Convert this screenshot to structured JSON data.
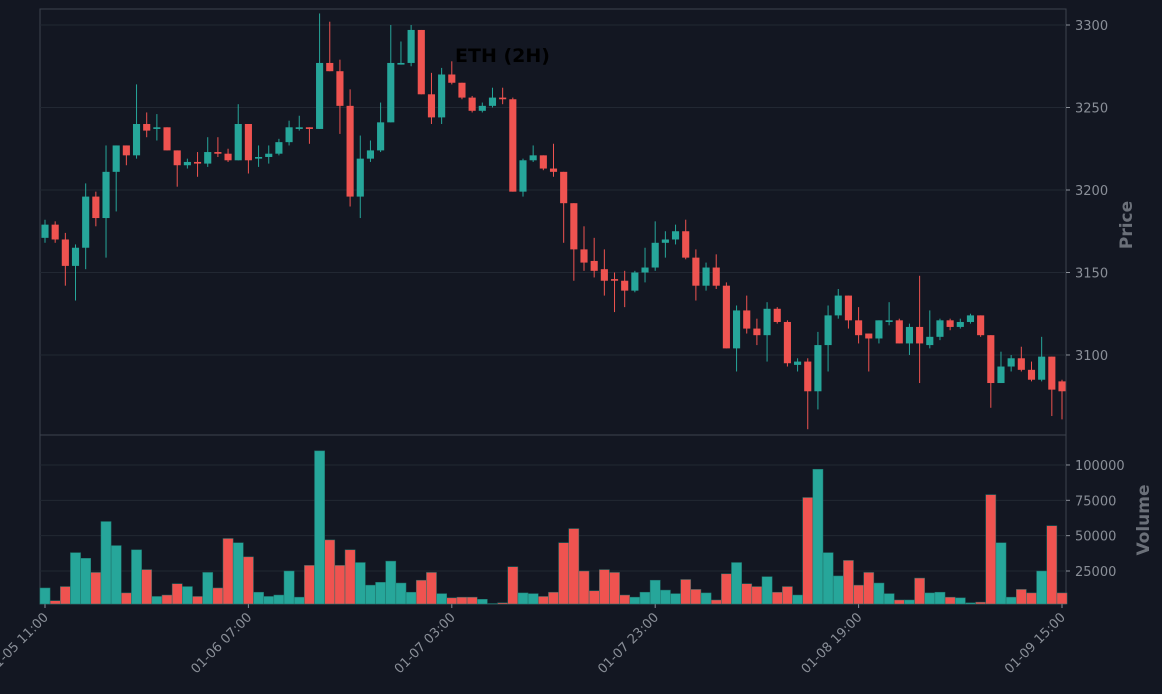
{
  "chart_data": {
    "type": "candlestick",
    "title": "ETH (2H)",
    "ylabel": "Price",
    "volume_label": "Volume",
    "up_color": "#26a69a",
    "down_color": "#ef5350",
    "categories": [
      "01-05 11:00",
      null,
      null,
      null,
      null,
      null,
      null,
      null,
      null,
      null,
      null,
      null,
      null,
      null,
      null,
      null,
      null,
      null,
      null,
      null,
      "01-06 07:00",
      null,
      null,
      null,
      null,
      null,
      null,
      null,
      null,
      null,
      null,
      null,
      null,
      null,
      null,
      null,
      null,
      null,
      null,
      null,
      "01-07 03:00",
      null,
      null,
      null,
      null,
      null,
      null,
      null,
      null,
      null,
      null,
      null,
      null,
      null,
      null,
      null,
      null,
      null,
      null,
      null,
      "01-07 23:00",
      null,
      null,
      null,
      null,
      null,
      null,
      null,
      null,
      null,
      null,
      null,
      null,
      null,
      null,
      null,
      null,
      null,
      null,
      null,
      "01-08 19:00",
      null,
      null,
      null,
      null,
      null,
      null,
      null,
      null,
      null,
      null,
      null,
      null,
      null,
      null,
      null,
      null,
      null,
      null,
      null,
      "01-09 15:00"
    ],
    "open": [
      3171,
      3179,
      3170,
      3154,
      3165,
      3196,
      3183,
      3211,
      3227,
      3221,
      3240,
      3237,
      3238,
      3224,
      3215,
      3217,
      3216,
      3223,
      3222,
      3218,
      3240,
      3219,
      3220,
      3222,
      3229,
      3237,
      3238,
      3237,
      3277,
      3272,
      3251,
      3196,
      3219,
      3224,
      3241,
      3276,
      3277,
      3297,
      3258,
      3244,
      3270,
      3265,
      3256,
      3248,
      3251,
      3256,
      3255,
      3199,
      3218,
      3221,
      3213,
      3211,
      3192,
      3164,
      3157,
      3152,
      3146,
      3145,
      3139,
      3150,
      3153,
      3168,
      3170,
      3175,
      3159,
      3142,
      3153,
      3142,
      3104,
      3127,
      3116,
      3112,
      3128,
      3120,
      3094,
      3096,
      3078,
      3106,
      3124,
      3136,
      3121,
      3113,
      3110,
      3120,
      3121,
      3107,
      3117,
      3106,
      3111,
      3121,
      3117,
      3120,
      3124,
      3112,
      3083,
      3093,
      3098,
      3091,
      3085,
      3099,
      3084
    ],
    "high": [
      3182,
      3181,
      3174,
      3167,
      3204,
      3199,
      3227,
      3227,
      3227,
      3264,
      3247,
      3246,
      3238,
      3224,
      3219,
      3223,
      3232,
      3232,
      3225,
      3252,
      3240,
      3227,
      3227,
      3231,
      3242,
      3245,
      3238,
      3307,
      3302,
      3279,
      3261,
      3233,
      3230,
      3253,
      3300,
      3290,
      3300,
      3297,
      3271,
      3274,
      3278,
      3265,
      3257,
      3253,
      3262,
      3262,
      3256,
      3219,
      3227,
      3221,
      3228,
      3211,
      3192,
      3178,
      3171,
      3164,
      3150,
      3151,
      3151,
      3165,
      3181,
      3175,
      3179,
      3182,
      3164,
      3156,
      3161,
      3144,
      3130,
      3136,
      3122,
      3132,
      3129,
      3121,
      3098,
      3098,
      3114,
      3130,
      3140,
      3136,
      3129,
      3113,
      3121,
      3132,
      3122,
      3119,
      3148,
      3127,
      3122,
      3122,
      3122,
      3125,
      3124,
      3112,
      3102,
      3100,
      3105,
      3096,
      3111,
      3099,
      3085
    ],
    "low": [
      3168,
      3168,
      3142,
      3133,
      3152,
      3178,
      3159,
      3187,
      3215,
      3219,
      3232,
      3230,
      3224,
      3202,
      3213,
      3208,
      3214,
      3220,
      3217,
      3218,
      3210,
      3214,
      3216,
      3221,
      3227,
      3236,
      3228,
      3237,
      3272,
      3234,
      3190,
      3183,
      3217,
      3223,
      3241,
      3276,
      3275,
      3258,
      3240,
      3240,
      3264,
      3255,
      3247,
      3247,
      3250,
      3252,
      3199,
      3196,
      3217,
      3212,
      3208,
      3168,
      3145,
      3151,
      3147,
      3136,
      3126,
      3129,
      3138,
      3144,
      3151,
      3159,
      3167,
      3158,
      3133,
      3139,
      3140,
      3104,
      3090,
      3113,
      3106,
      3096,
      3119,
      3093,
      3090,
      3055,
      3067,
      3090,
      3122,
      3116,
      3107,
      3090,
      3107,
      3118,
      3107,
      3100,
      3083,
      3104,
      3109,
      3115,
      3116,
      3119,
      3111,
      3068,
      3083,
      3090,
      3090,
      3084,
      3084,
      3063,
      3061
    ],
    "close": [
      3179,
      3170,
      3154,
      3165,
      3196,
      3183,
      3211,
      3227,
      3221,
      3240,
      3236,
      3238,
      3224,
      3215,
      3217,
      3216,
      3223,
      3222,
      3218,
      3240,
      3218,
      3220,
      3222,
      3229,
      3238,
      3238,
      3237,
      3277,
      3272,
      3251,
      3196,
      3219,
      3224,
      3241,
      3277,
      3277,
      3297,
      3258,
      3244,
      3270,
      3265,
      3256,
      3248,
      3251,
      3256,
      3255,
      3199,
      3218,
      3221,
      3213,
      3211,
      3192,
      3164,
      3156,
      3151,
      3145,
      3145,
      3139,
      3150,
      3153,
      3168,
      3170,
      3175,
      3159,
      3142,
      3153,
      3142,
      3104,
      3127,
      3116,
      3112,
      3128,
      3120,
      3095,
      3096,
      3078,
      3106,
      3124,
      3136,
      3121,
      3112,
      3110,
      3121,
      3121,
      3107,
      3117,
      3107,
      3111,
      3121,
      3117,
      3120,
      3124,
      3112,
      3083,
      3093,
      3098,
      3091,
      3085,
      3099,
      3079,
      3078
    ],
    "volume": [
      13000,
      4000,
      14000,
      38000,
      34000,
      24000,
      60000,
      43000,
      9500,
      40000,
      26000,
      7000,
      8000,
      16000,
      14000,
      7000,
      24000,
      13000,
      48000,
      45000,
      35000,
      10000,
      7000,
      8000,
      25000,
      6500,
      29000,
      110000,
      47000,
      29000,
      40000,
      31000,
      15000,
      17000,
      32000,
      16500,
      10000,
      18500,
      24000,
      9000,
      6000,
      6500,
      6500,
      5000,
      2000,
      2500,
      28000,
      9500,
      9000,
      7000,
      10000,
      45000,
      55000,
      25000,
      11000,
      26000,
      24000,
      8000,
      6500,
      10000,
      18500,
      11500,
      9000,
      19000,
      12000,
      9500,
      4500,
      23000,
      31000,
      16000,
      14000,
      21000,
      10000,
      14000,
      8000,
      77000,
      97000,
      38000,
      21500,
      32500,
      15000,
      24000,
      16500,
      9000,
      4500,
      4500,
      20000,
      9500,
      10000,
      6500,
      6000,
      2500,
      3000,
      79000,
      45000,
      6500,
      12000,
      9500,
      25000,
      57000,
      9500
    ],
    "ylim": [
      3051.5,
      3309.7
    ],
    "yticks": [
      3100,
      3150,
      3200,
      3250,
      3300
    ],
    "volume_ylim": [
      1650,
      120500
    ],
    "volume_yticks": [
      25000,
      50000,
      75000,
      100000
    ],
    "grid": true
  }
}
